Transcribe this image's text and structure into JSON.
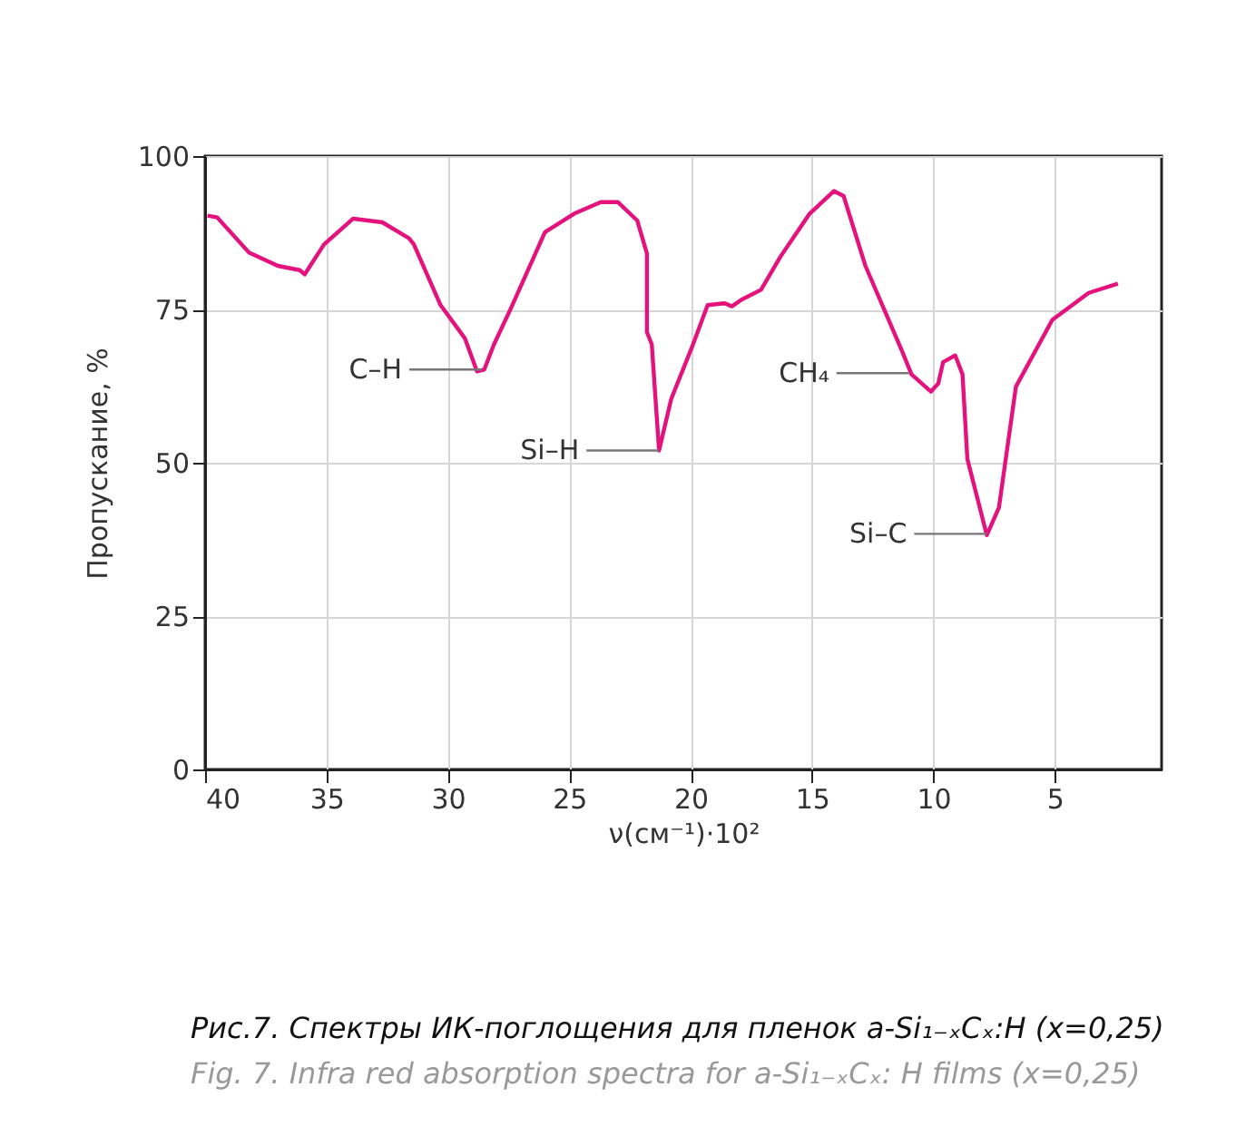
{
  "chart_data": {
    "type": "line",
    "xlabel": "ν(см⁻¹)·10²",
    "ylabel": "Пропускание, %",
    "x": [
      39.9,
      39.5,
      38.2,
      37.0,
      36.1,
      35.9,
      35.1,
      33.9,
      32.7,
      31.6,
      31.4,
      30.3,
      29.3,
      28.8,
      28.5,
      28.1,
      27.4,
      26.0,
      24.8,
      23.7,
      23.0,
      22.2,
      21.8,
      21.8,
      21.6,
      21.3,
      20.8,
      19.9,
      19.3,
      18.6,
      18.3,
      17.9,
      17.1,
      16.3,
      15.1,
      14.1,
      13.7,
      12.8,
      11.3,
      10.9,
      10.1,
      9.8,
      9.6,
      9.1,
      8.8,
      8.6,
      7.8,
      7.3,
      6.6,
      5.1,
      3.6,
      2.4
    ],
    "series": [
      {
        "color": "#e5127d",
        "values": [
          90.3,
          90.0,
          84.3,
          82.1,
          81.4,
          80.7,
          85.6,
          89.8,
          89.2,
          86.6,
          85.6,
          75.7,
          70.3,
          64.9,
          65.2,
          69.3,
          75.2,
          87.6,
          90.6,
          92.5,
          92.5,
          89.5,
          84.1,
          71.3,
          69.3,
          52.0,
          60.4,
          69.3,
          75.7,
          76.0,
          75.5,
          76.6,
          78.2,
          83.6,
          90.6,
          94.3,
          93.5,
          82.1,
          68.3,
          64.4,
          61.6,
          62.9,
          66.4,
          67.5,
          64.4,
          50.6,
          38.2,
          42.7,
          62.4,
          73.3,
          77.7,
          79.2
        ]
      }
    ],
    "xlim": [
      40,
      0.6
    ],
    "xticks": [
      40,
      35,
      30,
      25,
      20,
      15,
      10,
      5
    ],
    "ylim": [
      0,
      100
    ],
    "yticks": [
      0,
      25,
      50,
      75,
      100
    ],
    "grid": true,
    "marker": "none",
    "line_style": "solid",
    "annotations": [
      {
        "text": "C–H",
        "x": 28.6,
        "y": 65.2
      },
      {
        "text": "Si–H",
        "x": 21.3,
        "y": 52.0
      },
      {
        "text": "CH₄",
        "x": 11.0,
        "y": 64.6
      },
      {
        "text": "Si–C",
        "x": 7.8,
        "y": 38.4
      },
      "Рис.7. Спектры ИК-поглощения для пленок a-Si₁₋ₓCₓ:H (x=0,25)",
      "Fig. 7. Infra red absorption spectra for a-Si₁₋ₓCₓ: H films (x=0,25)"
    ]
  }
}
